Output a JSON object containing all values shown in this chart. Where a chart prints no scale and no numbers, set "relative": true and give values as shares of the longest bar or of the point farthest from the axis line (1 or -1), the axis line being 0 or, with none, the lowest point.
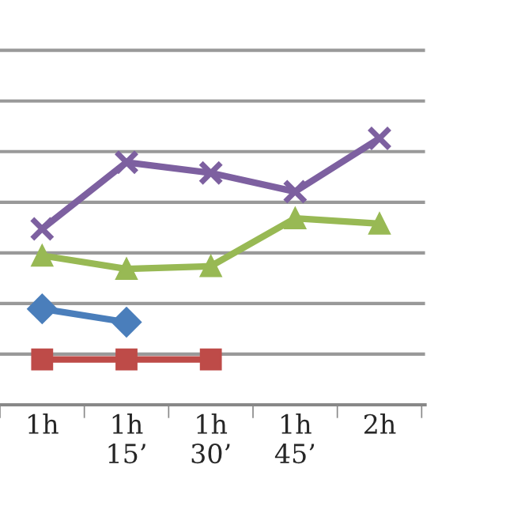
{
  "chart_data": {
    "type": "line",
    "relative": true,
    "grid": "y",
    "categories": [
      "1h",
      "1h\n15’",
      "1h\n30’",
      "1h\n45’",
      "2h"
    ],
    "series": [
      {
        "color": "#4a7ebb",
        "marker": "diamond",
        "values": [
          0.36,
          0.31,
          null,
          null,
          null
        ]
      },
      {
        "color": "#be4b48",
        "marker": "square",
        "values": [
          0.17,
          0.17,
          0.17,
          null,
          null
        ]
      },
      {
        "color": "#98b954",
        "marker": "triangle",
        "values": [
          0.56,
          0.51,
          0.52,
          0.7,
          0.68
        ]
      },
      {
        "color": "#7d60a0",
        "marker": "cross",
        "values": [
          0.66,
          0.91,
          0.87,
          0.8,
          1
        ]
      }
    ]
  }
}
